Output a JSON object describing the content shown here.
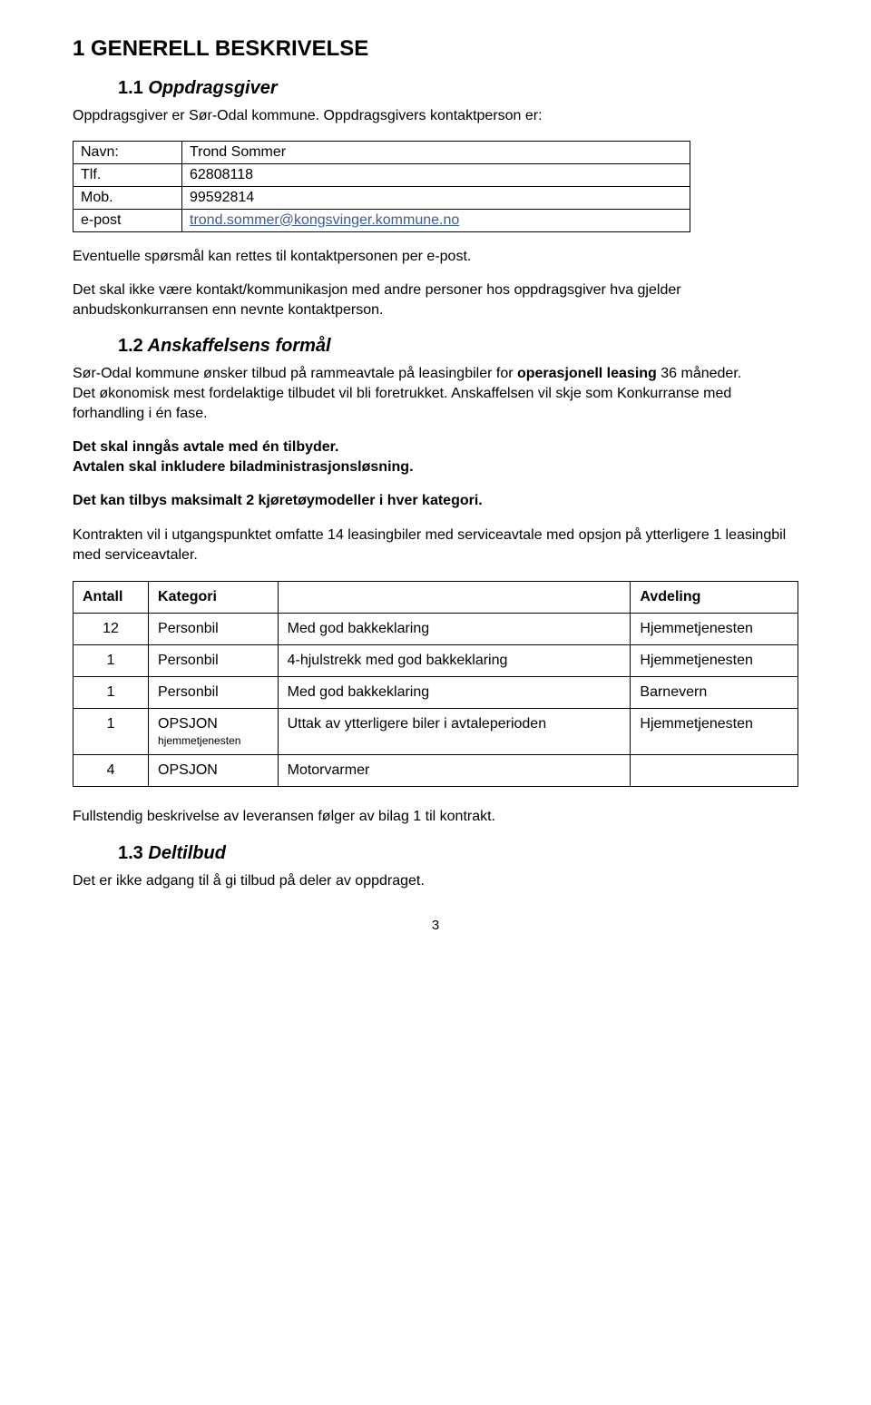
{
  "section1": {
    "title": "1 GENERELL BESKRIVELSE",
    "sub1_1": {
      "num": "1.1",
      "label": "Oppdragsgiver"
    },
    "intro": "Oppdragsgiver er Sør-Odal kommune. Oppdragsgivers kontaktperson er:",
    "contact": {
      "rows": [
        {
          "label": "Navn:",
          "value": "Trond Sommer"
        },
        {
          "label": "Tlf.",
          "value": "62808118"
        },
        {
          "label": "Mob.",
          "value": "99592814"
        },
        {
          "label": "e-post",
          "value": "trond.sommer@kongsvinger.kommune.no",
          "is_link": true
        }
      ]
    },
    "post_contact_1": "Eventuelle spørsmål kan rettes til kontaktpersonen per e-post.",
    "post_contact_2": "Det skal ikke være kontakt/kommunikasjon med andre personer hos oppdragsgiver hva gjelder anbudskonkurransen enn nevnte kontaktperson.",
    "sub1_2": {
      "num": "1.2",
      "label": "Anskaffelsens formål"
    },
    "p1_2_a_pre": "Sør-Odal kommune ønsker tilbud på rammeavtale på leasingbiler for ",
    "p1_2_a_bold": "operasjonell leasing",
    "p1_2_a_post": " 36 måneder.",
    "p1_2_b": "Det økonomisk mest fordelaktige tilbudet vil bli foretrukket. Anskaffelsen vil skje som Konkurranse med forhandling i én fase.",
    "p1_2_bold1": "Det skal inngås avtale med én tilbyder.",
    "p1_2_bold2": "Avtalen skal inkludere biladministrasjonsløsning.",
    "p1_2_bold3": "Det kan tilbys maksimalt 2 kjøretøymodeller i hver kategori.",
    "p1_2_c": "Kontrakten vil i utgangspunktet omfatte 14 leasingbiler med serviceavtale med opsjon på ytterligere 1 leasingbil med serviceavtaler.",
    "vehicle_table": {
      "headers": [
        "Antall",
        "Kategori",
        "",
        "Avdeling"
      ],
      "rows": [
        {
          "antall": "12",
          "kategori": "Personbil",
          "beskrivelse": "Med god bakkeklaring",
          "avdeling": "Hjemmetjenesten"
        },
        {
          "antall": "1",
          "kategori": "Personbil",
          "beskrivelse": "4-hjulstrekk med god bakkeklaring",
          "avdeling": "Hjemmetjenesten"
        },
        {
          "antall": "1",
          "kategori": "Personbil",
          "beskrivelse": "Med god bakkeklaring",
          "avdeling": "Barnevern"
        },
        {
          "antall": "1",
          "kategori": "OPSJON",
          "kategori_sub": "hjemmetjenesten",
          "beskrivelse": "Uttak av ytterligere biler i avtaleperioden",
          "avdeling": "Hjemmetjenesten"
        },
        {
          "antall": "4",
          "kategori": "OPSJON",
          "beskrivelse": "Motorvarmer",
          "avdeling": ""
        }
      ]
    },
    "p1_2_end": "Fullstendig beskrivelse av leveransen følger av bilag 1 til kontrakt.",
    "sub1_3": {
      "num": "1.3",
      "label": "Deltilbud"
    },
    "p1_3": "Det er ikke adgang til å gi tilbud på deler av oppdraget."
  },
  "page_number": "3",
  "colors": {
    "link": "#3b5b9a",
    "text": "#000000",
    "background": "#ffffff",
    "border": "#000000"
  },
  "typography": {
    "body_pt": 16,
    "h1_pt": 24,
    "h2_pt": 20,
    "font_family": "Arial"
  }
}
